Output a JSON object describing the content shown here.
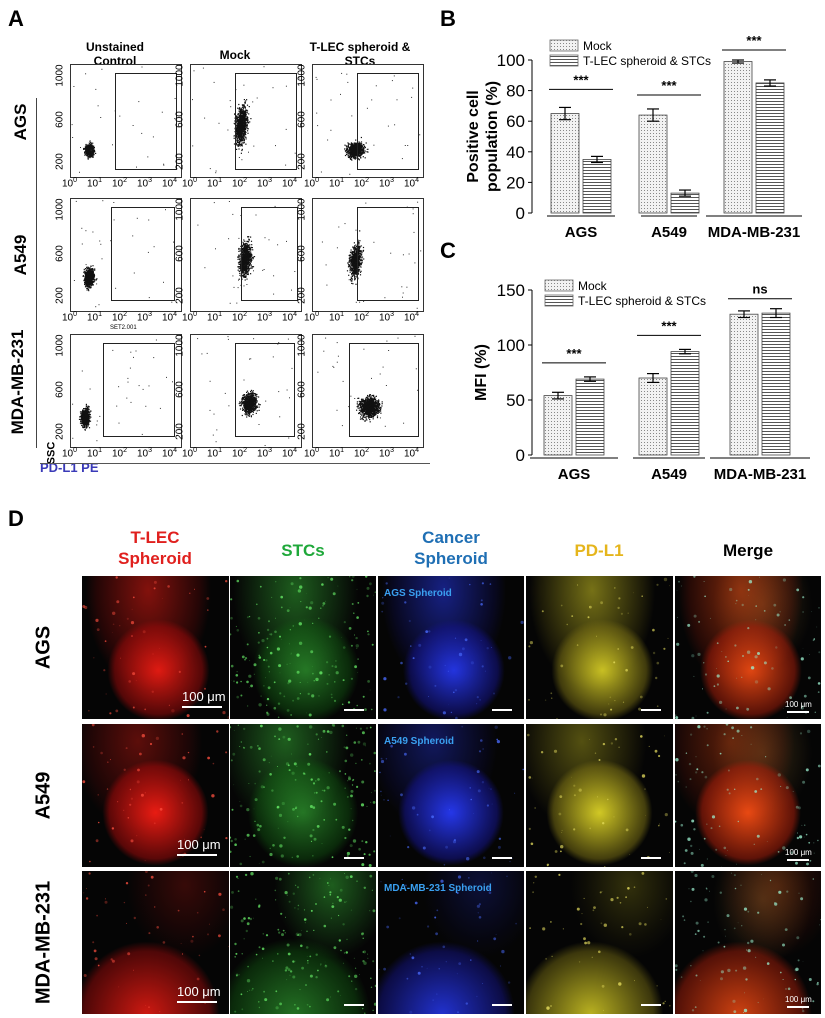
{
  "panel_letters": {
    "a": "A",
    "b": "B",
    "c": "C",
    "d": "D"
  },
  "panel_a": {
    "columns": [
      "Unstained Control",
      "Mock",
      "T-LEC spheroid & STCs"
    ],
    "columns_lines": [
      [
        "Unstained",
        "Control"
      ],
      [
        "Mock",
        ""
      ],
      [
        "T-LEC spheroid &",
        "STCs"
      ]
    ],
    "rows": [
      "AGS",
      "A549",
      "MDA-MB-231"
    ],
    "y_ticks": [
      "1000",
      "600",
      "200"
    ],
    "x_ticks": [
      "10",
      "10",
      "10",
      "10",
      "10"
    ],
    "x_exponents": [
      "0",
      "1",
      "2",
      "3",
      "4"
    ],
    "y_axis_label": "SSC",
    "x_axis_label": "PD-L1 PE",
    "inset_label": "SET2.001"
  },
  "chart_data": [
    {
      "type": "bar",
      "panel": "B",
      "ylabel": "Positive cell population (%)",
      "ylabel_lines": [
        "Positive cell",
        "population (%)"
      ],
      "ylim": [
        0,
        100
      ],
      "yticks": [
        "0",
        "20",
        "40",
        "60",
        "80",
        "100"
      ],
      "categories": [
        "AGS",
        "A549",
        "MDA-MB-231"
      ],
      "legend": [
        "Mock",
        "T-LEC spheroid & STCs"
      ],
      "legend_position": "top-left",
      "series": [
        {
          "name": "Mock",
          "values": [
            65,
            64,
            99
          ],
          "errors": [
            4,
            4,
            1
          ]
        },
        {
          "name": "T-LEC spheroid & STCs",
          "values": [
            35,
            13,
            85
          ],
          "errors": [
            2,
            2,
            2
          ]
        }
      ],
      "significance": [
        "***",
        "***",
        "***"
      ],
      "color": "#d0d0d0"
    },
    {
      "type": "bar",
      "panel": "C",
      "ylabel": "MFI (%)",
      "ylim": [
        0,
        150
      ],
      "yticks": [
        "0",
        "50",
        "100",
        "150"
      ],
      "categories": [
        "AGS",
        "A549",
        "MDA-MB-231"
      ],
      "legend": [
        "Mock",
        "T-LEC spheroid & STCs"
      ],
      "legend_position": "top-left",
      "series": [
        {
          "name": "Mock",
          "values": [
            54,
            70,
            128
          ],
          "errors": [
            3,
            4,
            3
          ]
        },
        {
          "name": "T-LEC spheroid & STCs",
          "values": [
            69,
            94,
            129
          ],
          "errors": [
            2,
            2,
            4
          ]
        }
      ],
      "significance": [
        "***",
        "***",
        "ns"
      ],
      "color": "#d0d0d0"
    }
  ],
  "panel_d": {
    "columns": [
      {
        "lines": [
          "T-LEC",
          "Spheroid"
        ],
        "color": "#e0201e"
      },
      {
        "lines": [
          "STCs",
          ""
        ],
        "color": "#1fa83a"
      },
      {
        "lines": [
          "Cancer",
          "Spheroid"
        ],
        "color": "#1f6fb4"
      },
      {
        "lines": [
          "PD-L1",
          ""
        ],
        "color": "#e5b51c"
      },
      {
        "lines": [
          "Merge",
          ""
        ],
        "color": "#000000"
      }
    ],
    "rows": [
      "AGS",
      "A549",
      "MDA-MB-231"
    ],
    "spheroid_labels": [
      "AGS Spheroid",
      "A549 Spheroid",
      "MDA-MB-231 Spheroid"
    ],
    "scale_label": "100 μm",
    "scale_label_small": "100 μm"
  }
}
